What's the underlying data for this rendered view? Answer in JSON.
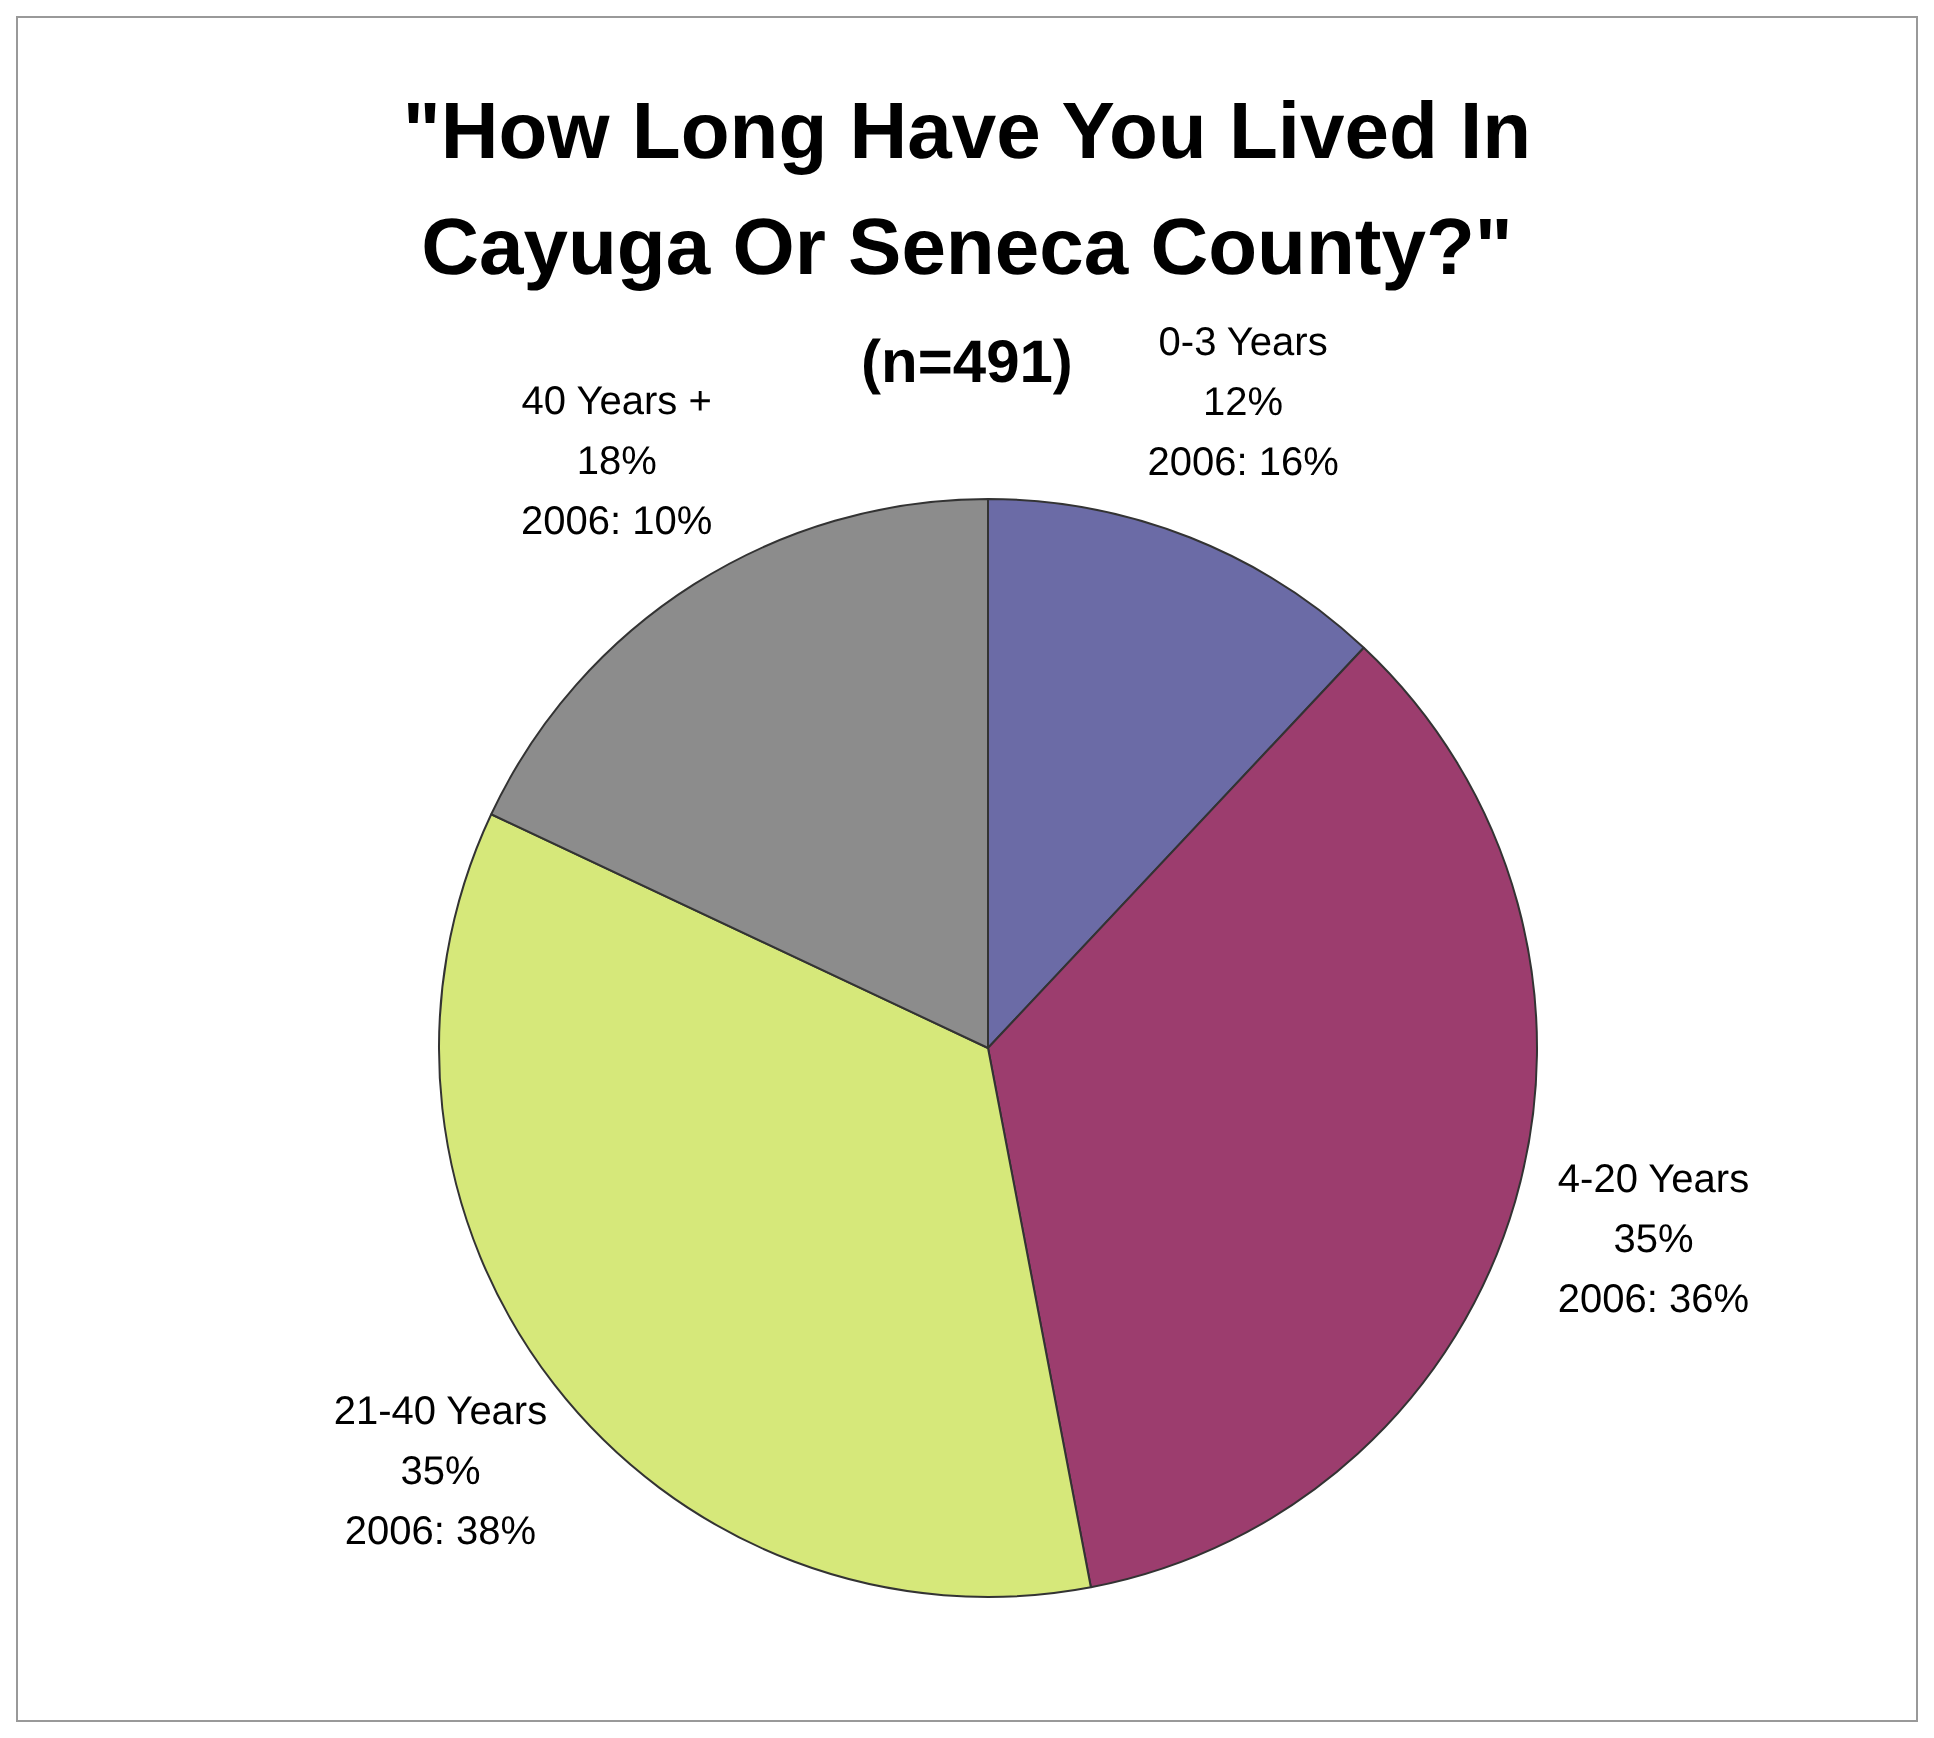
{
  "chart_data": {
    "type": "pie",
    "title": "\"How Long Have You Lived In Cayuga Or Seneca County?\"",
    "subtitle": "(n=491)",
    "categories": [
      "0-3 Years",
      "4-20 Years",
      "21-40 Years",
      "40 Years +"
    ],
    "values": [
      12,
      35,
      35,
      18
    ],
    "value_labels": [
      "12%\n2006: 16%",
      "35%\n2006: 36%",
      "35%\n2006: 38%",
      "18%\n2006: 10%"
    ],
    "colors": [
      "#6b6ba6",
      "#9c3d6e",
      "#d6e87a",
      "#8c8c8c"
    ],
    "legend": false
  }
}
